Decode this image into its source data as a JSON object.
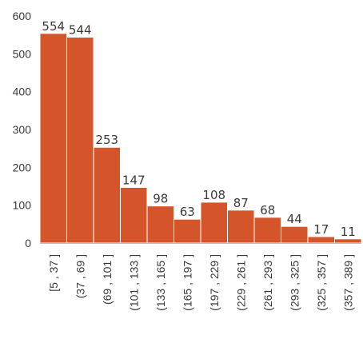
{
  "chart_data": {
    "type": "bar",
    "title": "",
    "xlabel": "",
    "ylabel": "",
    "ylim": [
      0,
      600
    ],
    "yticks": [
      0,
      100,
      200,
      300,
      400,
      500,
      600
    ],
    "grid": false,
    "bar_color": "#d4552a",
    "categories": [
      "[5 , 37 ]",
      "(37 , 69 ]",
      "(69 , 101 ]",
      "(101 , 133 ]",
      "(133 , 165 ]",
      "(165 , 197 ]",
      "(197 , 229 ]",
      "(229 , 261 ]",
      "(261 , 293 ]",
      "(293 , 325 ]",
      "(325 , 357 ]",
      "(357 , 389 ]"
    ],
    "values": [
      554,
      544,
      253,
      147,
      98,
      63,
      108,
      87,
      68,
      44,
      17,
      11
    ]
  }
}
